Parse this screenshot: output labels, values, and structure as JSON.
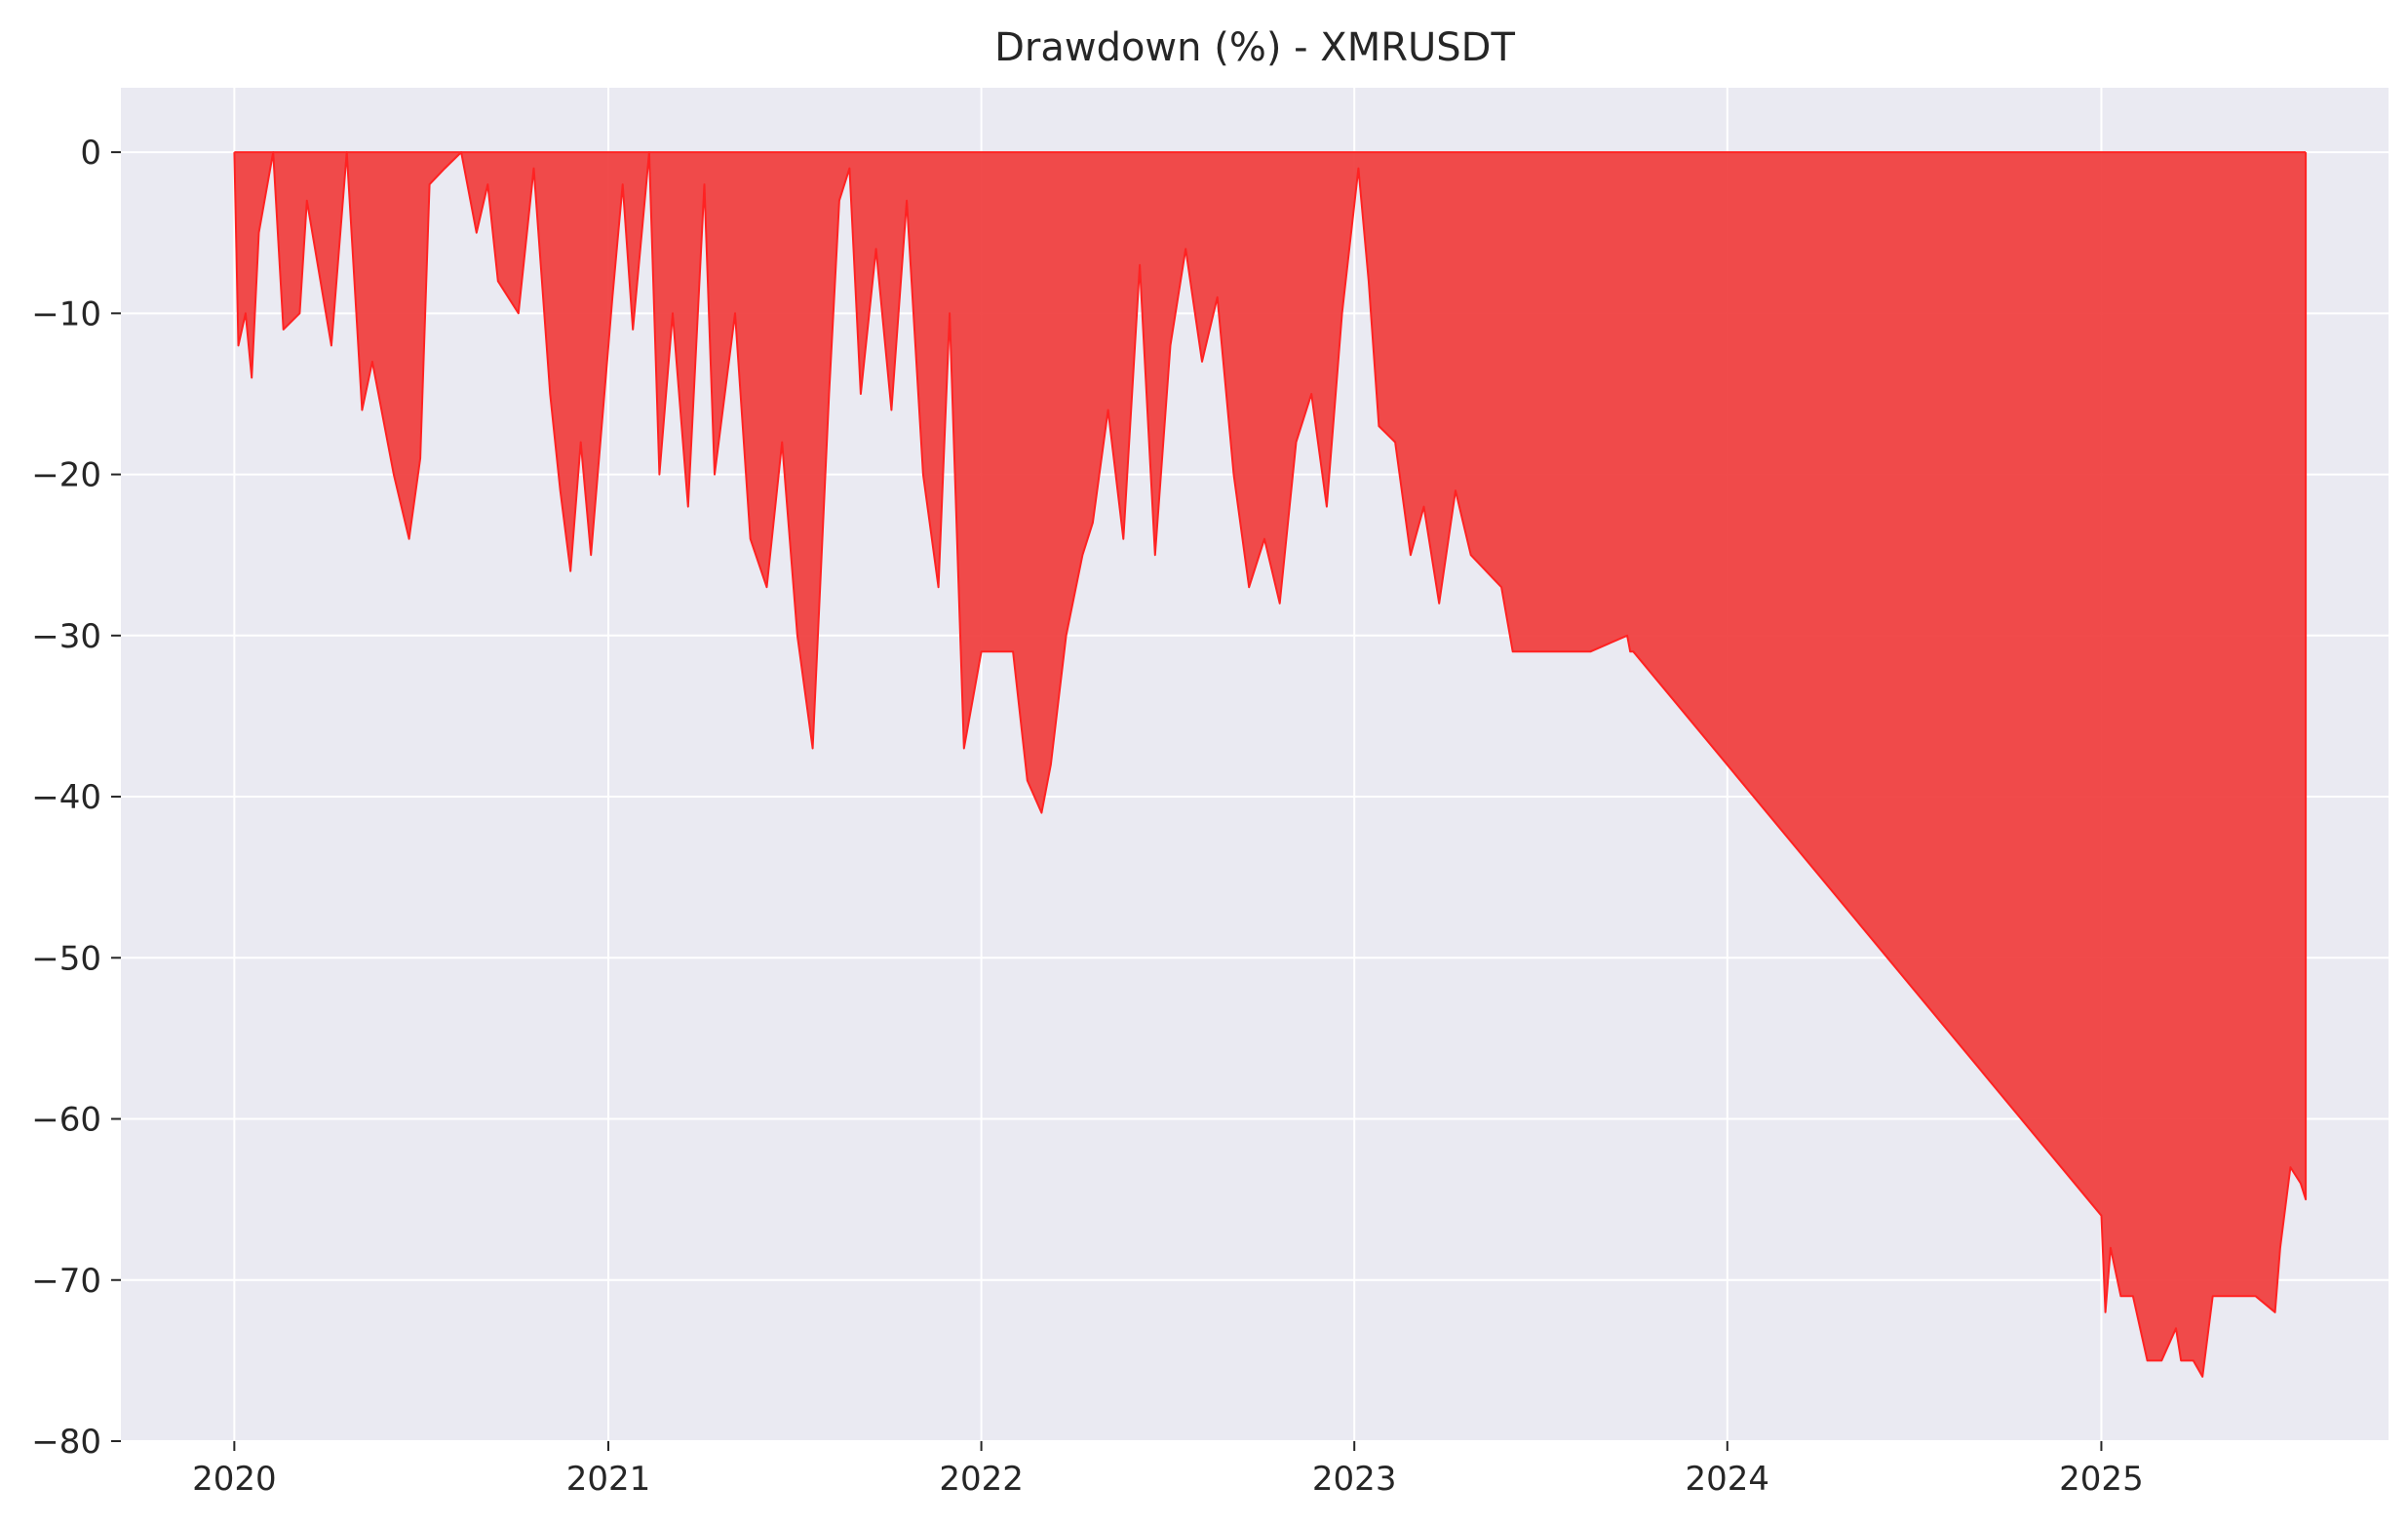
{
  "chart_data": {
    "type": "area",
    "title": "Drawdown (%) - XMRUSDT",
    "xlabel": "",
    "ylabel": "",
    "ylim": [
      -80,
      4
    ],
    "xlim": [
      "2019-09-12",
      "2025-10-09"
    ],
    "y_ticks": [
      0,
      -10,
      -20,
      -30,
      -40,
      -50,
      -60,
      -70,
      -80
    ],
    "x_ticks": [
      "2020-01-01",
      "2021-01-01",
      "2022-01-01",
      "2023-01-01",
      "2024-01-01",
      "2025-01-01"
    ],
    "x_tick_labels": [
      "2020",
      "2021",
      "2022",
      "2023",
      "2024",
      "2025"
    ],
    "grid": true,
    "colors": {
      "fill": "#f03c3c",
      "line": "#ff2222",
      "background": "#eaeaf2",
      "grid": "#ffffff"
    },
    "series": [
      {
        "x": [
          "2020-01-01",
          "2020-01-05",
          "2020-01-12",
          "2020-01-18",
          "2020-01-25",
          "2020-02-08",
          "2020-02-18",
          "2020-03-05",
          "2020-03-12",
          "2020-04-05",
          "2020-04-20",
          "2020-05-05",
          "2020-05-15",
          "2020-06-05",
          "2020-06-20",
          "2020-07-01",
          "2020-07-10",
          "2020-07-25",
          "2020-08-10",
          "2020-08-25",
          "2020-09-05",
          "2020-09-15",
          "2020-10-05",
          "2020-10-20",
          "2020-11-05",
          "2020-11-15",
          "2020-11-25",
          "2020-12-05",
          "2020-12-15",
          "2021-01-05",
          "2021-01-15",
          "2021-01-25",
          "2021-02-10",
          "2021-02-20",
          "2021-03-05",
          "2021-03-20",
          "2021-04-05",
          "2021-04-15",
          "2021-05-05",
          "2021-05-20",
          "2021-06-05",
          "2021-06-20",
          "2021-07-05",
          "2021-07-20",
          "2021-08-05",
          "2021-08-15",
          "2021-08-25",
          "2021-09-05",
          "2021-09-20",
          "2021-10-05",
          "2021-10-20",
          "2021-11-05",
          "2021-11-20",
          "2021-12-01",
          "2021-12-15",
          "2022-01-01",
          "2022-01-15",
          "2022-02-01",
          "2022-02-15",
          "2022-03-01",
          "2022-03-10",
          "2022-03-25",
          "2022-04-10",
          "2022-04-20",
          "2022-05-05",
          "2022-05-20",
          "2022-06-05",
          "2022-06-20",
          "2022-07-05",
          "2022-07-20",
          "2022-08-05",
          "2022-08-20",
          "2022-09-05",
          "2022-09-20",
          "2022-10-05",
          "2022-10-20",
          "2022-11-05",
          "2022-11-20",
          "2022-12-05",
          "2022-12-20",
          "2023-01-05",
          "2023-01-15",
          "2023-01-25",
          "2023-02-10",
          "2023-02-25",
          "2023-03-10",
          "2023-03-25",
          "2023-04-10",
          "2023-04-25",
          "2023-05-10",
          "2023-05-25",
          "2023-06-05",
          "2023-06-10",
          "2023-07-15",
          "2023-08-20",
          "2023-09-25",
          "2023-09-28",
          "2023-10-01",
          "2025-01-01",
          "2025-01-05",
          "2025-01-10",
          "2025-01-20",
          "2025-02-01",
          "2025-02-15",
          "2025-03-01",
          "2025-03-15",
          "2025-03-20",
          "2025-04-01",
          "2025-04-10",
          "2025-04-20",
          "2025-05-01",
          "2025-05-15",
          "2025-06-01",
          "2025-06-20",
          "2025-06-25",
          "2025-07-05",
          "2025-07-15",
          "2025-07-20",
          "2025-07-20"
        ],
        "y": [
          0,
          -12,
          -10,
          -14,
          -5,
          0,
          -11,
          -10,
          -3,
          -12,
          0,
          -16,
          -13,
          -20,
          -24,
          -19,
          -2,
          -1,
          0,
          -5,
          -2,
          -8,
          -10,
          -1,
          -15,
          -21,
          -26,
          -18,
          -25,
          -9,
          -2,
          -11,
          0,
          -20,
          -10,
          -22,
          -2,
          -20,
          -10,
          -24,
          -27,
          -18,
          -30,
          -37,
          -15,
          -3,
          -1,
          -15,
          -6,
          -16,
          -3,
          -20,
          -27,
          -10,
          -37,
          -31,
          -31,
          -31,
          -39,
          -41,
          -38,
          -30,
          -25,
          -23,
          -16,
          -24,
          -7,
          -25,
          -12,
          -6,
          -13,
          -9,
          -20,
          -27,
          -24,
          -28,
          -18,
          -15,
          -22,
          -10,
          -1,
          -8,
          -17,
          -18,
          -25,
          -22,
          -28,
          -21,
          -25,
          -26,
          -27,
          -31,
          -31,
          -31,
          -31,
          -30,
          -31,
          -31,
          -66,
          -72,
          -68,
          -71,
          -71,
          -75,
          -75,
          -73,
          -75,
          -75,
          -76,
          -71,
          -71,
          -71,
          -71,
          -72,
          -68,
          -63,
          -64,
          -65,
          0
        ]
      }
    ]
  }
}
